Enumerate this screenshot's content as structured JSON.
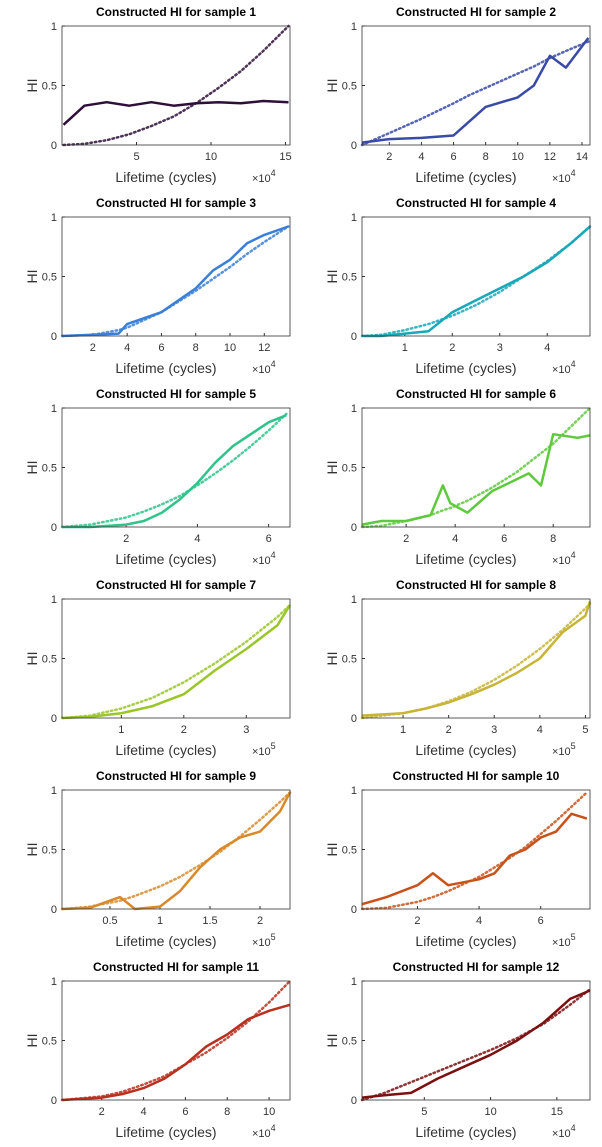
{
  "chart_data": [
    {
      "type": "line",
      "title": "Constructed HI for sample 1",
      "xlabel": "Lifetime (cycles)",
      "ylabel": "HI",
      "x_scale": "×10",
      "x_scale_exponent": 4,
      "xlim": [
        0,
        15.3
      ],
      "xticks": [
        5,
        10,
        15
      ],
      "ylim": [
        0,
        1
      ],
      "yticks": [
        0,
        0.5,
        1
      ],
      "x": [
        0.1,
        1.5,
        3,
        4.5,
        6,
        7.5,
        9,
        10.5,
        12,
        13.5,
        15.2
      ],
      "series": [
        {
          "color": "#2d0f3a",
          "line_style": "solid",
          "values": [
            0.17,
            0.33,
            0.36,
            0.33,
            0.36,
            0.33,
            0.35,
            0.36,
            0.35,
            0.37,
            0.36
          ]
        },
        {
          "color": "#2d0f3a",
          "line_style": "dotted",
          "values": [
            0,
            0.01,
            0.04,
            0.09,
            0.16,
            0.24,
            0.35,
            0.48,
            0.62,
            0.79,
            1
          ]
        }
      ]
    },
    {
      "type": "line",
      "title": "Constructed HI for sample 2",
      "xlabel": "Lifetime (cycles)",
      "ylabel": "HI",
      "x_scale": "×10",
      "x_scale_exponent": 4,
      "xlim": [
        0.3,
        14.5
      ],
      "xticks": [
        2,
        4,
        6,
        8,
        10,
        12,
        14
      ],
      "ylim": [
        0,
        1
      ],
      "yticks": [
        0,
        0.5,
        1
      ],
      "x": [
        0.3,
        2,
        4,
        6,
        7,
        8,
        10,
        11,
        12,
        13,
        14.4
      ],
      "series": [
        {
          "color": "#3a4aa8",
          "line_style": "solid",
          "values": [
            0.02,
            0.05,
            0.06,
            0.08,
            0.2,
            0.32,
            0.4,
            0.5,
            0.75,
            0.65,
            0.9
          ]
        },
        {
          "color": "#3a4aa8",
          "line_style": "dotted",
          "values": [
            0,
            0.1,
            0.22,
            0.35,
            0.42,
            0.48,
            0.6,
            0.66,
            0.73,
            0.79,
            0.87
          ]
        }
      ]
    },
    {
      "type": "line",
      "title": "Constructed HI for sample 3",
      "xlabel": "Lifetime (cycles)",
      "ylabel": "HI",
      "x_scale": "×10",
      "x_scale_exponent": 4,
      "xlim": [
        0.2,
        13.5
      ],
      "xticks": [
        2,
        4,
        6,
        8,
        10,
        12
      ],
      "ylim": [
        0,
        1
      ],
      "yticks": [
        0,
        0.5,
        1
      ],
      "x": [
        0.2,
        2,
        3.5,
        4,
        6,
        8,
        9,
        10,
        11,
        12,
        13.4
      ],
      "series": [
        {
          "color": "#3a7fd8",
          "line_style": "solid",
          "values": [
            0,
            0.01,
            0.02,
            0.1,
            0.2,
            0.4,
            0.55,
            0.64,
            0.78,
            0.85,
            0.92
          ]
        },
        {
          "color": "#3a7fd8",
          "line_style": "dotted",
          "values": [
            0,
            0.01,
            0.05,
            0.07,
            0.2,
            0.38,
            0.48,
            0.58,
            0.69,
            0.79,
            0.92
          ]
        }
      ]
    },
    {
      "type": "line",
      "title": "Constructed HI for sample 4",
      "xlabel": "Lifetime (cycles)",
      "ylabel": "HI",
      "x_scale": "×10",
      "x_scale_exponent": 4,
      "xlim": [
        0.1,
        4.9
      ],
      "xticks": [
        1,
        2,
        3,
        4
      ],
      "ylim": [
        0,
        1
      ],
      "yticks": [
        0,
        0.5,
        1
      ],
      "x": [
        0.1,
        0.5,
        1,
        1.5,
        2,
        2.5,
        3,
        3.5,
        4,
        4.5,
        4.9
      ],
      "series": [
        {
          "color": "#1aa7b8",
          "line_style": "solid",
          "values": [
            0,
            0,
            0.02,
            0.04,
            0.2,
            0.3,
            0.4,
            0.5,
            0.62,
            0.78,
            0.92
          ]
        },
        {
          "color": "#1aa7b8",
          "line_style": "dotted",
          "values": [
            0,
            0.01,
            0.05,
            0.1,
            0.17,
            0.26,
            0.37,
            0.5,
            0.63,
            0.78,
            0.92
          ]
        }
      ]
    },
    {
      "type": "line",
      "title": "Constructed HI for sample 5",
      "xlabel": "Lifetime (cycles)",
      "ylabel": "HI",
      "x_scale": "×10",
      "x_scale_exponent": 4,
      "xlim": [
        0.2,
        6.6
      ],
      "xticks": [
        2,
        4,
        6
      ],
      "ylim": [
        0,
        1
      ],
      "yticks": [
        0,
        0.5,
        1
      ],
      "x": [
        0.2,
        1,
        2,
        2.5,
        3,
        3.5,
        4,
        4.5,
        5,
        5.5,
        6,
        6.5
      ],
      "series": [
        {
          "color": "#2ec48a",
          "line_style": "solid",
          "values": [
            0,
            0,
            0.02,
            0.05,
            0.12,
            0.23,
            0.37,
            0.54,
            0.68,
            0.78,
            0.88,
            0.94
          ]
        },
        {
          "color": "#2ec48a",
          "line_style": "dotted",
          "values": [
            0,
            0.02,
            0.08,
            0.13,
            0.19,
            0.26,
            0.35,
            0.45,
            0.56,
            0.68,
            0.81,
            0.95
          ]
        }
      ]
    },
    {
      "type": "line",
      "title": "Constructed HI for sample 6",
      "xlabel": "Lifetime (cycles)",
      "ylabel": "HI",
      "x_scale": "×10",
      "x_scale_exponent": 4,
      "xlim": [
        0.2,
        9.5
      ],
      "xticks": [
        2,
        4,
        6,
        8
      ],
      "ylim": [
        0,
        1
      ],
      "yticks": [
        0,
        0.5,
        1
      ],
      "x": [
        0.2,
        1,
        2,
        3,
        3.5,
        3.8,
        4.5,
        5.5,
        6.5,
        7,
        7.5,
        8,
        9,
        9.5
      ],
      "series": [
        {
          "color": "#5ec93c",
          "line_style": "solid",
          "values": [
            0.02,
            0.05,
            0.05,
            0.1,
            0.35,
            0.2,
            0.12,
            0.3,
            0.4,
            0.45,
            0.35,
            0.78,
            0.75,
            0.77
          ]
        },
        {
          "color": "#5ec93c",
          "line_style": "dotted",
          "values": [
            0,
            0.01,
            0.05,
            0.1,
            0.14,
            0.16,
            0.22,
            0.33,
            0.46,
            0.54,
            0.62,
            0.7,
            0.9,
            1
          ]
        }
      ]
    },
    {
      "type": "line",
      "title": "Constructed HI for sample 7",
      "xlabel": "Lifetime (cycles)",
      "ylabel": "HI",
      "x_scale": "×10",
      "x_scale_exponent": 5,
      "xlim": [
        0.05,
        3.7
      ],
      "xticks": [
        1,
        2,
        3
      ],
      "ylim": [
        0,
        1
      ],
      "yticks": [
        0,
        0.5,
        1
      ],
      "x": [
        0.05,
        0.5,
        1,
        1.5,
        2,
        2.5,
        3,
        3.5,
        3.7
      ],
      "series": [
        {
          "color": "#9ac62a",
          "line_style": "solid",
          "values": [
            0,
            0.01,
            0.04,
            0.1,
            0.2,
            0.4,
            0.58,
            0.78,
            0.95
          ]
        },
        {
          "color": "#9ac62a",
          "line_style": "dotted",
          "values": [
            0,
            0.02,
            0.08,
            0.17,
            0.3,
            0.46,
            0.64,
            0.85,
            0.95
          ]
        }
      ]
    },
    {
      "type": "line",
      "title": "Constructed HI for sample 8",
      "xlabel": "Lifetime (cycles)",
      "ylabel": "HI",
      "x_scale": "×10",
      "x_scale_exponent": 5,
      "xlim": [
        0.1,
        5.1
      ],
      "xticks": [
        1,
        2,
        3,
        4,
        5
      ],
      "ylim": [
        0,
        1
      ],
      "yticks": [
        0,
        0.5,
        1
      ],
      "x": [
        0.1,
        1,
        1.5,
        2,
        2.5,
        3,
        3.5,
        4,
        4.5,
        5,
        5.1
      ],
      "series": [
        {
          "color": "#c8b435",
          "line_style": "solid",
          "values": [
            0.02,
            0.04,
            0.08,
            0.13,
            0.2,
            0.28,
            0.38,
            0.5,
            0.72,
            0.86,
            0.98
          ]
        },
        {
          "color": "#c8b435",
          "line_style": "dotted",
          "values": [
            0,
            0.04,
            0.08,
            0.14,
            0.22,
            0.32,
            0.44,
            0.58,
            0.74,
            0.92,
            0.96
          ]
        }
      ]
    },
    {
      "type": "line",
      "title": "Constructed HI for sample 9",
      "xlabel": "Lifetime (cycles)",
      "ylabel": "HI",
      "x_scale": "×10",
      "x_scale_exponent": 5,
      "xlim": [
        0.02,
        2.3
      ],
      "xticks": [
        0.5,
        1,
        1.5,
        2
      ],
      "ylim": [
        0,
        1
      ],
      "yticks": [
        0,
        0.5,
        1
      ],
      "x": [
        0.02,
        0.3,
        0.6,
        0.75,
        1,
        1.2,
        1.4,
        1.6,
        1.8,
        2,
        2.2,
        2.3
      ],
      "series": [
        {
          "color": "#d88a2a",
          "line_style": "solid",
          "values": [
            0,
            0.01,
            0.1,
            0,
            0.02,
            0.15,
            0.35,
            0.5,
            0.6,
            0.65,
            0.82,
            0.98
          ]
        },
        {
          "color": "#d88a2a",
          "line_style": "dotted",
          "values": [
            0,
            0.02,
            0.07,
            0.11,
            0.19,
            0.27,
            0.37,
            0.48,
            0.61,
            0.75,
            0.9,
            0.98
          ]
        }
      ]
    },
    {
      "type": "line",
      "title": "Constructed HI for sample 10",
      "xlabel": "Lifetime (cycles)",
      "ylabel": "HI",
      "x_scale": "×10",
      "x_scale_exponent": 5,
      "xlim": [
        0.2,
        7.6
      ],
      "xticks": [
        2,
        4,
        6
      ],
      "ylim": [
        0,
        1
      ],
      "yticks": [
        0,
        0.5,
        1
      ],
      "x": [
        0.2,
        1,
        2,
        2.5,
        3,
        4,
        4.5,
        5,
        5.5,
        6,
        6.5,
        7,
        7.5
      ],
      "series": [
        {
          "color": "#c9521a",
          "line_style": "solid",
          "values": [
            0.04,
            0.1,
            0.2,
            0.3,
            0.2,
            0.25,
            0.3,
            0.45,
            0.5,
            0.6,
            0.65,
            0.8,
            0.76
          ]
        },
        {
          "color": "#c9521a",
          "line_style": "dotted",
          "values": [
            0,
            0.01,
            0.06,
            0.1,
            0.15,
            0.27,
            0.35,
            0.43,
            0.52,
            0.63,
            0.74,
            0.86,
            0.98
          ]
        }
      ]
    },
    {
      "type": "line",
      "title": "Constructed HI for sample 11",
      "xlabel": "Lifetime (cycles)",
      "ylabel": "HI",
      "x_scale": "×10",
      "x_scale_exponent": 4,
      "xlim": [
        0.1,
        11
      ],
      "xticks": [
        2,
        4,
        6,
        8,
        10
      ],
      "ylim": [
        0,
        1
      ],
      "yticks": [
        0,
        0.5,
        1
      ],
      "x": [
        0.1,
        2,
        3,
        4,
        5,
        6,
        7,
        8,
        9,
        10,
        11
      ],
      "series": [
        {
          "color": "#b83020",
          "line_style": "solid",
          "values": [
            0,
            0.02,
            0.05,
            0.1,
            0.18,
            0.3,
            0.45,
            0.55,
            0.68,
            0.75,
            0.8
          ]
        },
        {
          "color": "#b83020",
          "line_style": "dotted",
          "values": [
            0,
            0.03,
            0.07,
            0.13,
            0.2,
            0.3,
            0.4,
            0.52,
            0.66,
            0.82,
            1
          ]
        }
      ]
    },
    {
      "type": "line",
      "title": "Constructed HI for sample 12",
      "xlabel": "Lifetime (cycles)",
      "ylabel": "HI",
      "x_scale": "×10",
      "x_scale_exponent": 4,
      "xlim": [
        0.3,
        17.5
      ],
      "xticks": [
        5,
        10,
        15
      ],
      "ylim": [
        0,
        1
      ],
      "yticks": [
        0,
        0.5,
        1
      ],
      "x": [
        0.3,
        2,
        4,
        6,
        8,
        10,
        12,
        14,
        16,
        17.5
      ],
      "series": [
        {
          "color": "#7a1010",
          "line_style": "solid",
          "values": [
            0.02,
            0.04,
            0.06,
            0.18,
            0.28,
            0.38,
            0.5,
            0.65,
            0.85,
            0.92
          ]
        },
        {
          "color": "#7a1010",
          "line_style": "dotted",
          "values": [
            0,
            0.06,
            0.15,
            0.24,
            0.33,
            0.42,
            0.52,
            0.64,
            0.8,
            0.93
          ]
        }
      ]
    }
  ]
}
